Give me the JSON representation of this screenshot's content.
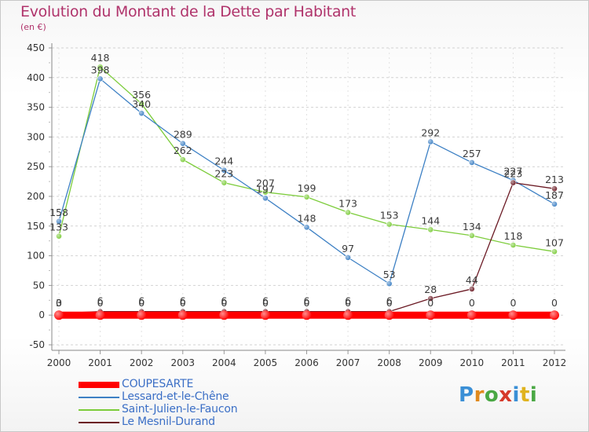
{
  "title": "Evolution du Montant de la Dette par Habitant",
  "subtitle": "(en €)",
  "brand": "Proxiti",
  "chart_data": {
    "type": "line",
    "title": "Evolution du Montant de la Dette par Habitant",
    "ylabel": "(en €)",
    "xlabel": "",
    "ylim": [
      -50,
      450
    ],
    "yticks": [
      "-50",
      "0",
      "50",
      "100",
      "150",
      "200",
      "250",
      "300",
      "350",
      "400",
      "450"
    ],
    "categories": [
      "2000",
      "2001",
      "2002",
      "2003",
      "2004",
      "2005",
      "2006",
      "2007",
      "2008",
      "2009",
      "2010",
      "2011",
      "2012"
    ],
    "grid": "dashed horizontal",
    "legend_position": "bottom-left",
    "series": [
      {
        "name": "COUPESARTE",
        "color": "#ff0000",
        "values": [
          0,
          0,
          0,
          0,
          0,
          0,
          0,
          0,
          0,
          0,
          0,
          0,
          0
        ],
        "labels": [
          "0",
          "0",
          "0",
          "0",
          "0",
          "0",
          "0",
          "0",
          "0",
          "0",
          "0",
          "0",
          "0"
        ]
      },
      {
        "name": "Lessard-et-le-Chêne",
        "color": "#3d80c4",
        "values": [
          158,
          398,
          340,
          289,
          244,
          197,
          148,
          97,
          53,
          292,
          257,
          227,
          187
        ],
        "labels": [
          "158",
          "398",
          "340",
          "289",
          "244",
          "197",
          "148",
          "97",
          "53",
          "292",
          "257",
          "227",
          "187"
        ]
      },
      {
        "name": "Saint-Julien-le-Faucon",
        "color": "#7ccc3a",
        "values": [
          133,
          418,
          356,
          262,
          223,
          207,
          199,
          173,
          153,
          144,
          134,
          118,
          107
        ],
        "labels": [
          "133",
          "418",
          "356",
          "262",
          "223",
          "207",
          "199",
          "173",
          "153",
          "144",
          "134",
          "118",
          "107"
        ]
      },
      {
        "name": "Le Mesnil-Durand",
        "color": "#6b1a24",
        "values": [
          3,
          6,
          6,
          6,
          6,
          6,
          6,
          6,
          6,
          28,
          44,
          223,
          213
        ],
        "labels": [
          "3",
          "6",
          "6",
          "6",
          "6",
          "6",
          "6",
          "6",
          "6",
          "28",
          "44",
          "223",
          "213"
        ]
      }
    ]
  }
}
